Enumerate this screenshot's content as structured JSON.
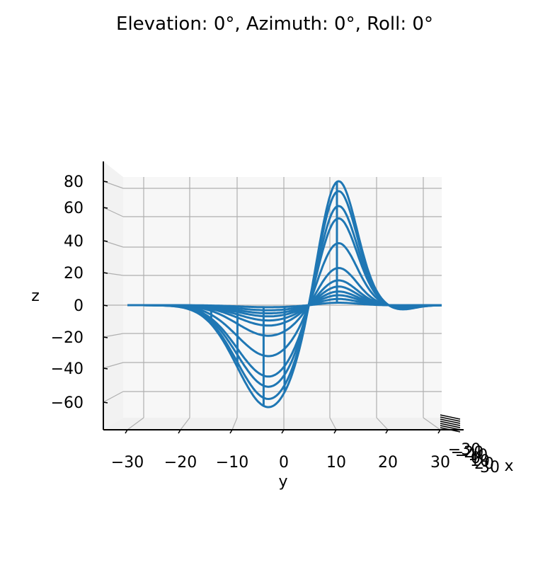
{
  "chart_data": {
    "type": "line",
    "title": "Elevation: 0°, Azimuth: 0°, Roll: 0°",
    "view": {
      "elevation": 0,
      "azimuth": 0,
      "roll": 0,
      "projection": "3d-wireframe"
    },
    "xlabel": "x",
    "ylabel": "y",
    "zlabel": "z",
    "y_ticks": [
      "−30",
      "−20",
      "−10",
      "0",
      "10",
      "20",
      "30"
    ],
    "z_ticks": [
      "80",
      "60",
      "40",
      "20",
      "0",
      "−20",
      "−40",
      "−60"
    ],
    "x_ticks_overlapping": [
      "−30",
      "−20",
      "−10",
      "0",
      "10",
      "20",
      "30"
    ],
    "ylim": [
      -30,
      30
    ],
    "zlim": [
      -65,
      85
    ],
    "grid": true,
    "pane_color": "#f7f7f7",
    "grid_color": "#b0b0b0",
    "series_color": "#1f77b4",
    "surface": {
      "formula_note": "wireframe of a scaled difference-of-Gaussians-like surface",
      "z_max": 84.8,
      "z_min": -65.6,
      "peak_y": 10,
      "trough_y": -3,
      "row_amplitude_scales": [
        1.0,
        0.92,
        0.8,
        0.7,
        0.5,
        0.3,
        0.2,
        0.15,
        0.11,
        0.08,
        0.05,
        0.02
      ]
    }
  }
}
